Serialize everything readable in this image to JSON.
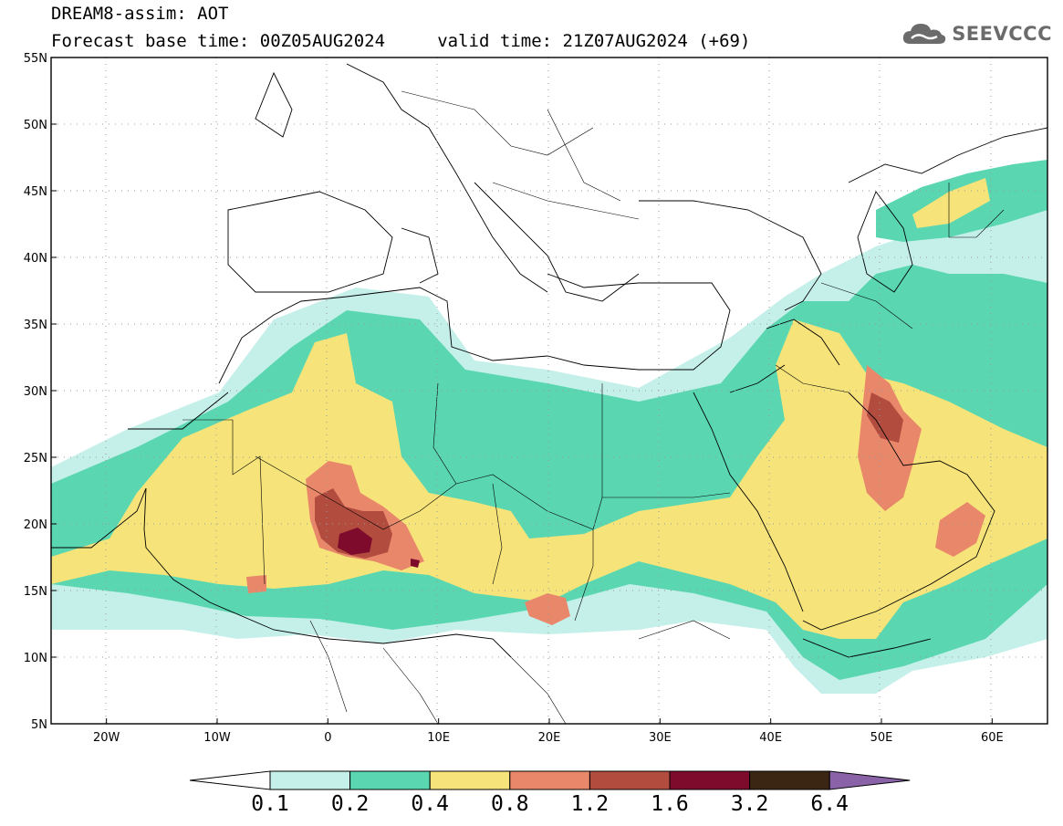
{
  "title": {
    "line1": "DREAM8-assim: AOT",
    "line2": "Forecast base time: 00Z05AUG2024     valid time: 21Z07AUG2024 (+69)"
  },
  "logo": {
    "text": "SEEVCCC",
    "icon": "cloud-icon"
  },
  "map": {
    "lat_ticks": [
      "55N",
      "50N",
      "45N",
      "40N",
      "35N",
      "30N",
      "25N",
      "20N",
      "15N",
      "10N",
      "5N"
    ],
    "lon_ticks": [
      "20W",
      "10W",
      "0",
      "10E",
      "20E",
      "30E",
      "40E",
      "50E",
      "60E"
    ],
    "lat_range": [
      5,
      55
    ],
    "lon_range": [
      -25,
      65
    ]
  },
  "colorbar": {
    "labels": [
      "0.1",
      "0.2",
      "0.4",
      "0.8",
      "1.2",
      "1.6",
      "3.2",
      "6.4"
    ],
    "colors": [
      "#ffffff",
      "#c5f0ea",
      "#5ad7b1",
      "#f6e47a",
      "#e8876a",
      "#b24c3f",
      "#7e0a2c",
      "#3b2614",
      "#8a62a8"
    ]
  }
}
